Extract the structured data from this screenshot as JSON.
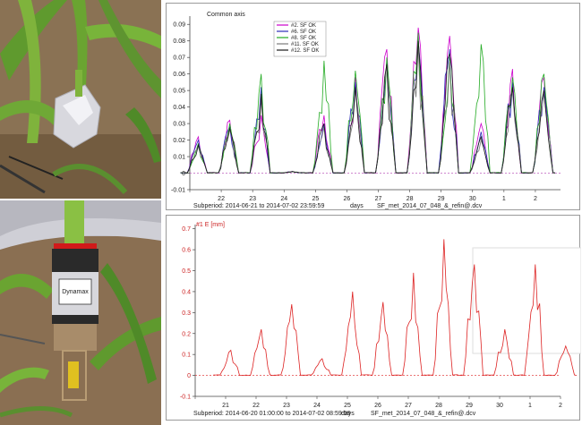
{
  "photos": [
    {
      "description_name": "corn-field-sensor-wrapped"
    },
    {
      "description_name": "corn-stem-sap-flow-sensor",
      "sensor_label": "Dynamax"
    }
  ],
  "chart_data": [
    {
      "type": "line",
      "title": "Common axis",
      "xlabel": "days",
      "subperiod": "Subperiod: 2014-06-21 to 2014-07-02 23:59:59",
      "filename": "SF_met_2014_07_048_&_refin@.dcv",
      "x_tick_labels": [
        "22",
        "23",
        "24",
        "25",
        "26",
        "27",
        "28",
        "29",
        "30",
        "1",
        "2"
      ],
      "y_tick_labels": [
        "-0.01",
        "0",
        "0.01",
        "0.02",
        "0.03",
        "0.04",
        "0.05",
        "0.06",
        "0.07",
        "0.08",
        "0.09"
      ],
      "ylim": [
        -0.01,
        0.095
      ],
      "legend_placement": "top-center",
      "grid": false,
      "series": [
        {
          "name": "#2. SF OK",
          "color": "#cc00cc",
          "peaks": [
            0.022,
            0.032,
            0.035,
            0.001,
            0.035,
            0.058,
            0.075,
            0.088,
            0.083,
            0.03,
            0.063,
            0.058
          ]
        },
        {
          "name": "#6. SF OK",
          "color": "#2a2ab8",
          "peaks": [
            0.02,
            0.028,
            0.052,
            0.001,
            0.03,
            0.055,
            0.068,
            0.08,
            0.075,
            0.025,
            0.055,
            0.052
          ]
        },
        {
          "name": "#8. SF OK",
          "color": "#22aa22",
          "peaks": [
            0.018,
            0.03,
            0.06,
            0.001,
            0.068,
            0.062,
            0.07,
            0.085,
            0.07,
            0.078,
            0.058,
            0.06
          ]
        },
        {
          "name": "#11. SF OK",
          "color": "#7a7a7a",
          "peaks": [
            0.016,
            0.026,
            0.045,
            0.001,
            0.028,
            0.05,
            0.065,
            0.078,
            0.068,
            0.02,
            0.05,
            0.048
          ]
        },
        {
          "name": "#12. SF OK",
          "color": "#1a1a1a",
          "peaks": [
            0.017,
            0.027,
            0.048,
            0.001,
            0.03,
            0.052,
            0.066,
            0.08,
            0.072,
            0.022,
            0.052,
            0.05
          ]
        }
      ]
    },
    {
      "type": "line",
      "title": "#1 E [mm]",
      "xlabel": "days",
      "subperiod": "Subperiod: 2014-06-20 01:00:00 to 2014-07-02 08:59:59",
      "filename": "SF_met_2014_07_048_&_refin@.dcv",
      "x_tick_labels": [
        "21",
        "22",
        "23",
        "24",
        "25",
        "26",
        "27",
        "28",
        "29",
        "30",
        "1",
        "2"
      ],
      "y_tick_labels": [
        "-0.1",
        "0",
        "0.1",
        "0.2",
        "0.3",
        "0.4",
        "0.5",
        "0.6",
        "0.7"
      ],
      "ylim": [
        -0.1,
        0.72
      ],
      "grid": false,
      "series": [
        {
          "color": "#dd2222",
          "peaks": [
            0.12,
            0.22,
            0.34,
            0.08,
            0.4,
            0.35,
            0.49,
            0.65,
            0.53,
            0.22,
            0.53,
            0.14
          ]
        }
      ]
    }
  ]
}
